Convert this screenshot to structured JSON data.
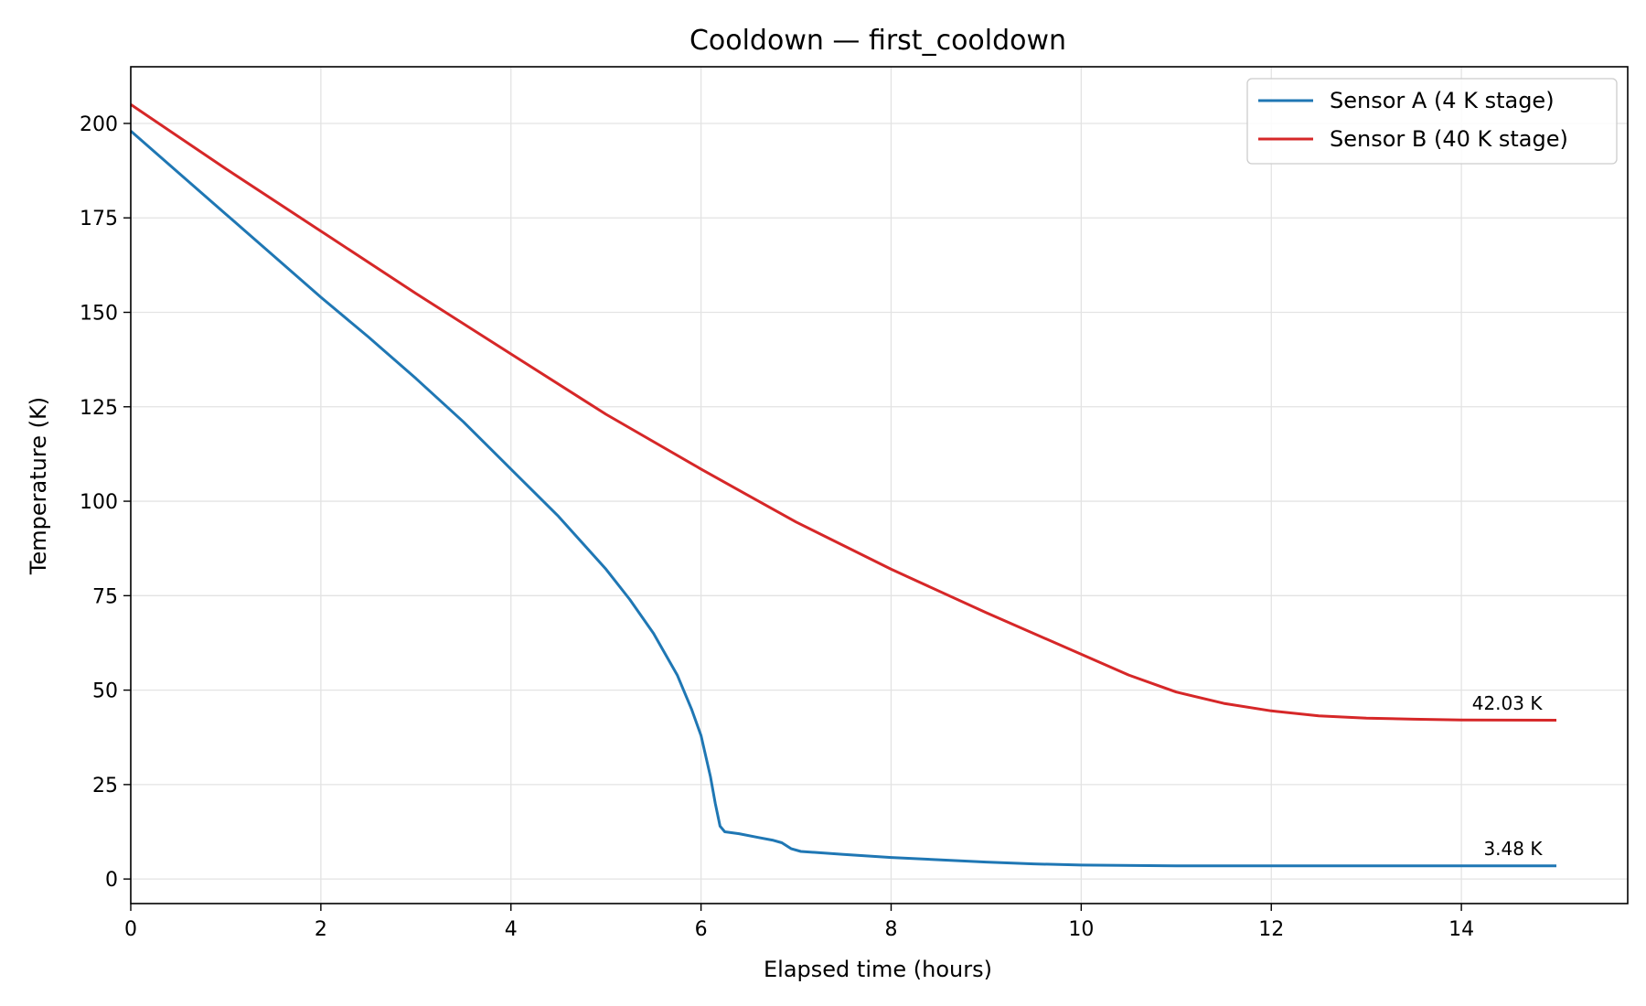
{
  "chart_data": {
    "type": "line",
    "title": "Cooldown — first_cooldown",
    "xlabel": "Elapsed time (hours)",
    "ylabel": "Temperature (K)",
    "xlim": [
      0,
      15.75
    ],
    "ylim": [
      -6.5,
      215
    ],
    "xticks": [
      0,
      2,
      4,
      6,
      8,
      10,
      12,
      14
    ],
    "yticks": [
      0,
      25,
      50,
      75,
      100,
      125,
      150,
      175,
      200
    ],
    "grid": true,
    "legend_position": "top-right",
    "series": [
      {
        "name": "Sensor A (4 K stage)",
        "color": "#1f77b4",
        "points": [
          [
            0,
            198
          ],
          [
            0.5,
            187
          ],
          [
            1,
            176
          ],
          [
            1.5,
            165
          ],
          [
            2,
            154
          ],
          [
            2.5,
            143.5
          ],
          [
            3,
            132.5
          ],
          [
            3.5,
            121
          ],
          [
            4,
            108.5
          ],
          [
            4.5,
            96
          ],
          [
            5,
            82
          ],
          [
            5.25,
            74
          ],
          [
            5.5,
            65
          ],
          [
            5.75,
            54
          ],
          [
            5.9,
            45
          ],
          [
            6.0,
            38
          ],
          [
            6.1,
            27
          ],
          [
            6.15,
            20
          ],
          [
            6.2,
            14
          ],
          [
            6.25,
            12.5
          ],
          [
            6.4,
            12
          ],
          [
            6.6,
            11
          ],
          [
            6.75,
            10.3
          ],
          [
            6.85,
            9.6
          ],
          [
            6.95,
            8
          ],
          [
            7.05,
            7.3
          ],
          [
            7.5,
            6.5
          ],
          [
            8,
            5.7
          ],
          [
            8.5,
            5.1
          ],
          [
            9,
            4.5
          ],
          [
            9.5,
            4
          ],
          [
            10,
            3.7
          ],
          [
            11,
            3.5
          ],
          [
            12,
            3.5
          ],
          [
            13,
            3.5
          ],
          [
            14,
            3.5
          ],
          [
            15,
            3.48
          ]
        ]
      },
      {
        "name": "Sensor B (40 K stage)",
        "color": "#d62728",
        "points": [
          [
            0,
            205
          ],
          [
            1,
            188
          ],
          [
            2,
            171.5
          ],
          [
            3,
            155
          ],
          [
            4,
            139
          ],
          [
            5,
            123
          ],
          [
            6,
            108.5
          ],
          [
            6.5,
            101.5
          ],
          [
            7,
            94.5
          ],
          [
            8,
            82
          ],
          [
            9,
            70.5
          ],
          [
            10,
            59.5
          ],
          [
            10.5,
            54
          ],
          [
            11,
            49.5
          ],
          [
            11.5,
            46.5
          ],
          [
            12,
            44.5
          ],
          [
            12.5,
            43.2
          ],
          [
            13,
            42.6
          ],
          [
            13.5,
            42.3
          ],
          [
            14,
            42.1
          ],
          [
            14.5,
            42.05
          ],
          [
            15,
            42.03
          ]
        ]
      }
    ],
    "annotations": [
      {
        "text": "42.03 K",
        "x": 14.85,
        "y": 44.8,
        "series": 1
      },
      {
        "text": "3.48 K",
        "x": 14.85,
        "y": 6.3,
        "series": 0
      }
    ]
  }
}
